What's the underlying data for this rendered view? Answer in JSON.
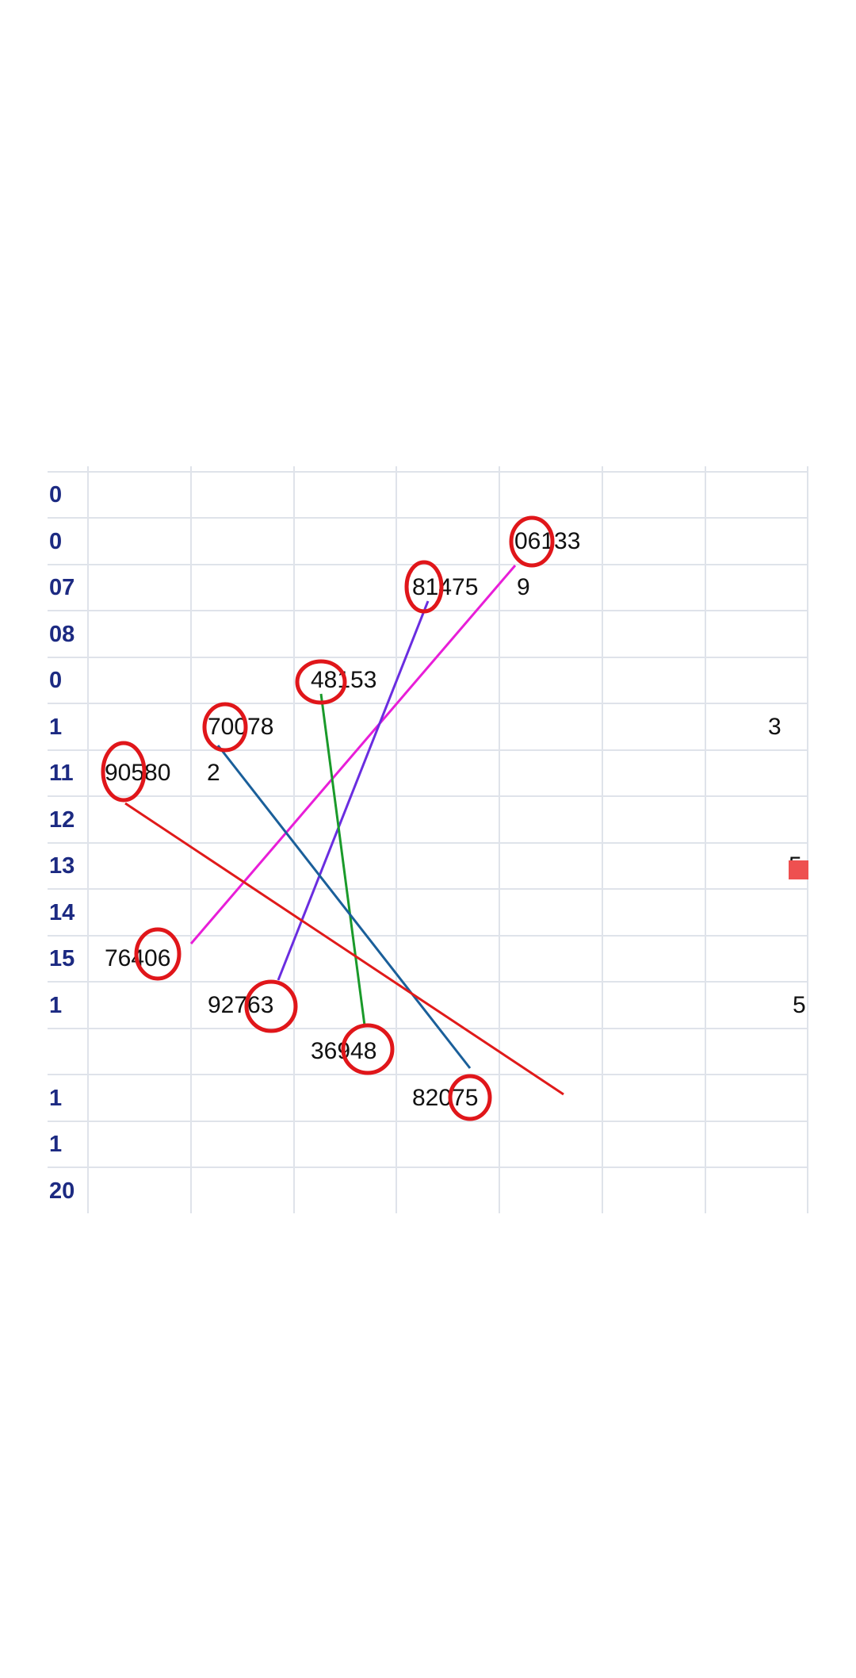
{
  "row_labels": [
    "0",
    "0",
    "07",
    "08",
    "0",
    "1",
    "11",
    "12",
    "13",
    "14",
    "15",
    "1",
    "",
    "1",
    "1",
    "20"
  ],
  "numbers": [
    {
      "text": "06133",
      "key": "n06133"
    },
    {
      "text": "81475",
      "key": "n81475"
    },
    {
      "text": "48153",
      "key": "n48153"
    },
    {
      "text": "70078",
      "key": "n70078"
    },
    {
      "text": "90580",
      "key": "n90580"
    },
    {
      "text": "76406",
      "key": "n76406"
    },
    {
      "text": "92763",
      "key": "n92763"
    },
    {
      "text": "36948",
      "key": "n36948"
    },
    {
      "text": "82075",
      "key": "n82075"
    }
  ],
  "fragments": [
    "9",
    "2",
    "5",
    "3",
    "5"
  ],
  "colors": {
    "circle": "#e0161a",
    "grid": "#dfe3ea",
    "label": "#1c2a82",
    "line_magenta": "#e81ed8",
    "line_purple": "#6a2de0",
    "line_green": "#1a9a2a",
    "line_blue": "#1a5f9a",
    "line_red": "#e01a1a",
    "red_cell": "#ee5050"
  }
}
